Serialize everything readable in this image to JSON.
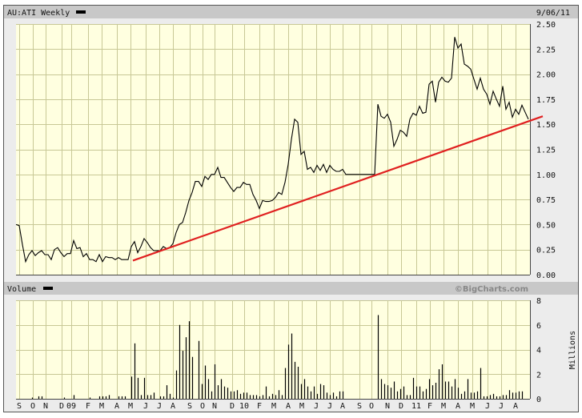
{
  "header": {
    "symbol_title": "AU:ATI Weekly",
    "date": "9/06/11"
  },
  "volume_header": {
    "title": "Volume",
    "brand": "©BigCharts.com",
    "unit_label": "Millions"
  },
  "colors": {
    "panel": "#ececec",
    "header_bar": "#c8c8c8",
    "plot_bg": "#ffffe0",
    "grid": "#c8c896",
    "price_line": "#000000",
    "trendline": "#e02020",
    "volume_bar": "#000000"
  },
  "chart_data": [
    {
      "type": "line",
      "title": "AU:ATI Weekly",
      "frequency": "weekly",
      "y_axis": {
        "position": "right",
        "ylim": [
          0,
          2.5
        ],
        "ticks": [
          "0.00",
          "0.25",
          "0.50",
          "0.75",
          "1.00",
          "1.25",
          "1.50",
          "1.75",
          "2.00",
          "2.25",
          "2.50"
        ]
      },
      "x_tick_labels": [
        "S",
        "O",
        "N",
        "D",
        "09",
        "F",
        "M",
        "A",
        "M",
        "J",
        "J",
        "A",
        "S",
        "O",
        "N",
        "D",
        "10",
        "F",
        "M",
        "A",
        "M",
        "J",
        "J",
        "A",
        "S",
        "O",
        "N",
        "D",
        "11",
        "F",
        "M",
        "A",
        "M",
        "J",
        "J",
        "A"
      ],
      "grid": true,
      "values": [
        0.5,
        0.49,
        0.3,
        0.13,
        0.2,
        0.24,
        0.19,
        0.22,
        0.24,
        0.2,
        0.2,
        0.15,
        0.25,
        0.27,
        0.22,
        0.18,
        0.21,
        0.21,
        0.34,
        0.26,
        0.27,
        0.18,
        0.21,
        0.15,
        0.15,
        0.13,
        0.2,
        0.13,
        0.18,
        0.17,
        0.17,
        0.15,
        0.17,
        0.15,
        0.15,
        0.15,
        0.28,
        0.33,
        0.22,
        0.28,
        0.36,
        0.32,
        0.27,
        0.24,
        0.24,
        0.24,
        0.28,
        0.26,
        0.27,
        0.31,
        0.42,
        0.5,
        0.52,
        0.62,
        0.74,
        0.82,
        0.93,
        0.93,
        0.88,
        0.98,
        0.95,
        1.0,
        1.0,
        1.07,
        0.97,
        0.97,
        0.92,
        0.87,
        0.83,
        0.87,
        0.87,
        0.92,
        0.9,
        0.9,
        0.8,
        0.74,
        0.66,
        0.74,
        0.73,
        0.73,
        0.74,
        0.77,
        0.82,
        0.8,
        0.92,
        1.1,
        1.35,
        1.55,
        1.52,
        1.2,
        1.23,
        1.05,
        1.07,
        1.02,
        1.09,
        1.04,
        1.1,
        1.02,
        1.09,
        1.05,
        1.03,
        1.03,
        1.05,
        1.0,
        1.0,
        1.0,
        1.0,
        1.0,
        1.0,
        1.0,
        1.0,
        1.0,
        1.0,
        1.7,
        1.58,
        1.56,
        1.6,
        1.52,
        1.28,
        1.35,
        1.44,
        1.42,
        1.38,
        1.55,
        1.61,
        1.59,
        1.68,
        1.61,
        1.62,
        1.9,
        1.93,
        1.72,
        1.92,
        1.97,
        1.93,
        1.92,
        1.96,
        2.37,
        2.26,
        2.3,
        2.1,
        2.08,
        2.05,
        1.95,
        1.85,
        1.96,
        1.85,
        1.8,
        1.7,
        1.83,
        1.75,
        1.68,
        1.88,
        1.65,
        1.72,
        1.57,
        1.65,
        1.6,
        1.69,
        1.62,
        1.55
      ],
      "trendline": {
        "start_value": 0.14,
        "end_value": 1.58,
        "color": "#e02020"
      }
    },
    {
      "type": "bar",
      "title": "Volume",
      "ylabel": "Millions",
      "y_axis": {
        "position": "right",
        "ylim": [
          0,
          8
        ],
        "ticks": [
          "0",
          "2",
          "4",
          "6",
          "8"
        ]
      },
      "values": [
        0,
        0,
        0,
        0,
        0,
        0.1,
        0,
        0.2,
        0.2,
        0,
        0,
        0,
        0,
        0,
        0,
        0.1,
        0,
        0,
        0.3,
        0,
        0,
        0,
        0,
        0.1,
        0,
        0,
        0.2,
        0.2,
        0.2,
        0.3,
        0,
        0,
        0.2,
        0.2,
        0.2,
        0,
        1.8,
        4.5,
        1.7,
        0.3,
        1.7,
        0.3,
        0.3,
        0.5,
        0,
        0.2,
        0.2,
        1.1,
        0.4,
        0.1,
        2.3,
        6.0,
        3.9,
        5.0,
        6.3,
        3.4,
        0,
        4.7,
        1.2,
        2.7,
        1.6,
        0.6,
        2.8,
        1.1,
        1.6,
        1.0,
        0.9,
        0.6,
        0.6,
        0.7,
        0.4,
        0.5,
        0.5,
        0.3,
        0.3,
        0.3,
        0.2,
        0.3,
        1.0,
        0.2,
        0.4,
        0.3,
        0.7,
        0.3,
        2.5,
        4.4,
        5.3,
        3.0,
        2.6,
        1.2,
        1.6,
        1.0,
        0.6,
        1.0,
        0.4,
        1.2,
        1.1,
        0.5,
        0.3,
        0.5,
        0.2,
        0.6,
        0.6,
        0,
        0,
        0,
        0,
        0,
        0,
        0,
        0,
        0,
        0,
        6.8,
        1.6,
        1.2,
        1.1,
        0.9,
        1.4,
        0.6,
        0.8,
        1.0,
        0.3,
        0.3,
        1.7,
        1.0,
        1.0,
        0.6,
        0.8,
        1.6,
        1.1,
        1.3,
        2.4,
        2.8,
        1.4,
        1.4,
        1.0,
        1.6,
        0.9,
        0.4,
        0.6,
        1.6,
        0.5,
        0.5,
        0.6,
        2.5,
        0.2,
        0.2,
        0.3,
        0.4,
        0.2,
        0.2,
        0.3,
        0.3,
        0.7,
        0.5,
        0.5,
        0.6,
        0.6,
        0,
        0
      ]
    }
  ]
}
